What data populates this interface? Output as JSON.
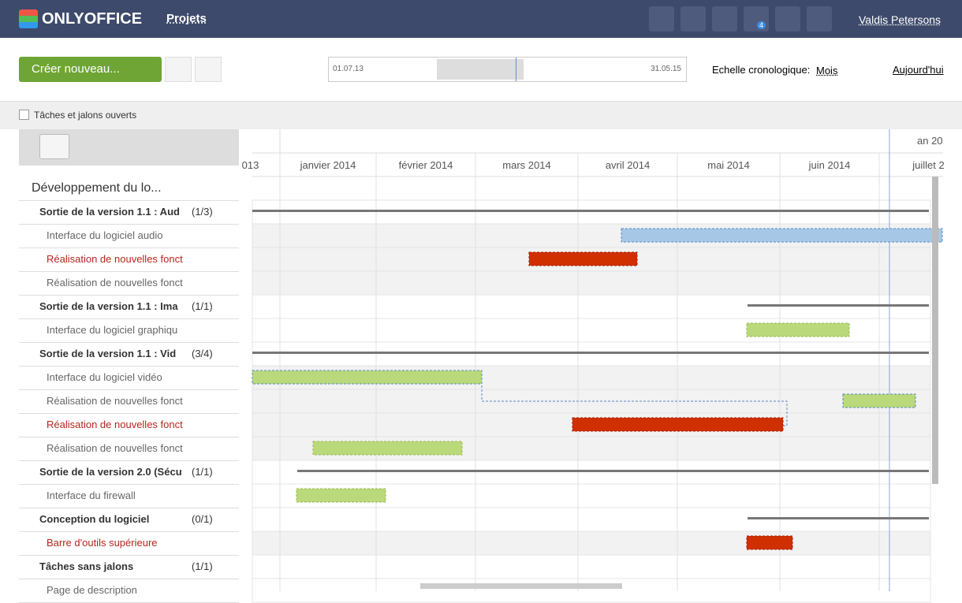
{
  "header": {
    "logo": "ONLYOFFICE",
    "module": "Projets",
    "mail_badge": "4",
    "user": "Valdis Petersons"
  },
  "toolbar": {
    "create": "Créer nouveau...",
    "range_start": "01.07.13",
    "range_end": "31.05.15",
    "scale_label": "Echelle cronologique:",
    "scale": "Mois",
    "today": "Aujourd'hui"
  },
  "filter": {
    "label": "Tâches et jalons ouverts"
  },
  "timeline": {
    "year": "an 20",
    "months": [
      "013",
      "janvier 2014",
      "février 2014",
      "mars 2014",
      "avril 2014",
      "mai 2014",
      "juin 2014",
      "juillet 2"
    ]
  },
  "project": {
    "title": "Développement du lo...",
    "rows": [
      {
        "title": "Sortie de la version 1.1 : Aud",
        "count": "(1/3)"
      },
      {
        "title": "Interface du logiciel audio"
      },
      {
        "title": "Réalisation de nouvelles fonct",
        "overdue": true
      },
      {
        "title": "Réalisation de nouvelles fonct"
      },
      {
        "title": "Sortie de la version 1.1 : Ima",
        "count": "(1/1)"
      },
      {
        "title": "Interface du logiciel graphiqu"
      },
      {
        "title": "Sortie de la version 1.1 : Vid",
        "count": "(3/4)"
      },
      {
        "title": "Interface du logiciel vidéo"
      },
      {
        "title": "Réalisation de nouvelles fonct"
      },
      {
        "title": "Réalisation de nouvelles fonct",
        "overdue": true
      },
      {
        "title": "Réalisation de nouvelles fonct"
      },
      {
        "title": "Sortie de la version 2.0 (Sécu",
        "count": "(1/1)"
      },
      {
        "title": "Interface du firewall"
      },
      {
        "title": "Conception du logiciel",
        "count": "(0/1)"
      },
      {
        "title": "Barre d'outils supérieure",
        "overdue": true
      },
      {
        "title": "Tâches sans jalons",
        "count": "(1/1)"
      },
      {
        "title": "Page de description"
      }
    ]
  }
}
